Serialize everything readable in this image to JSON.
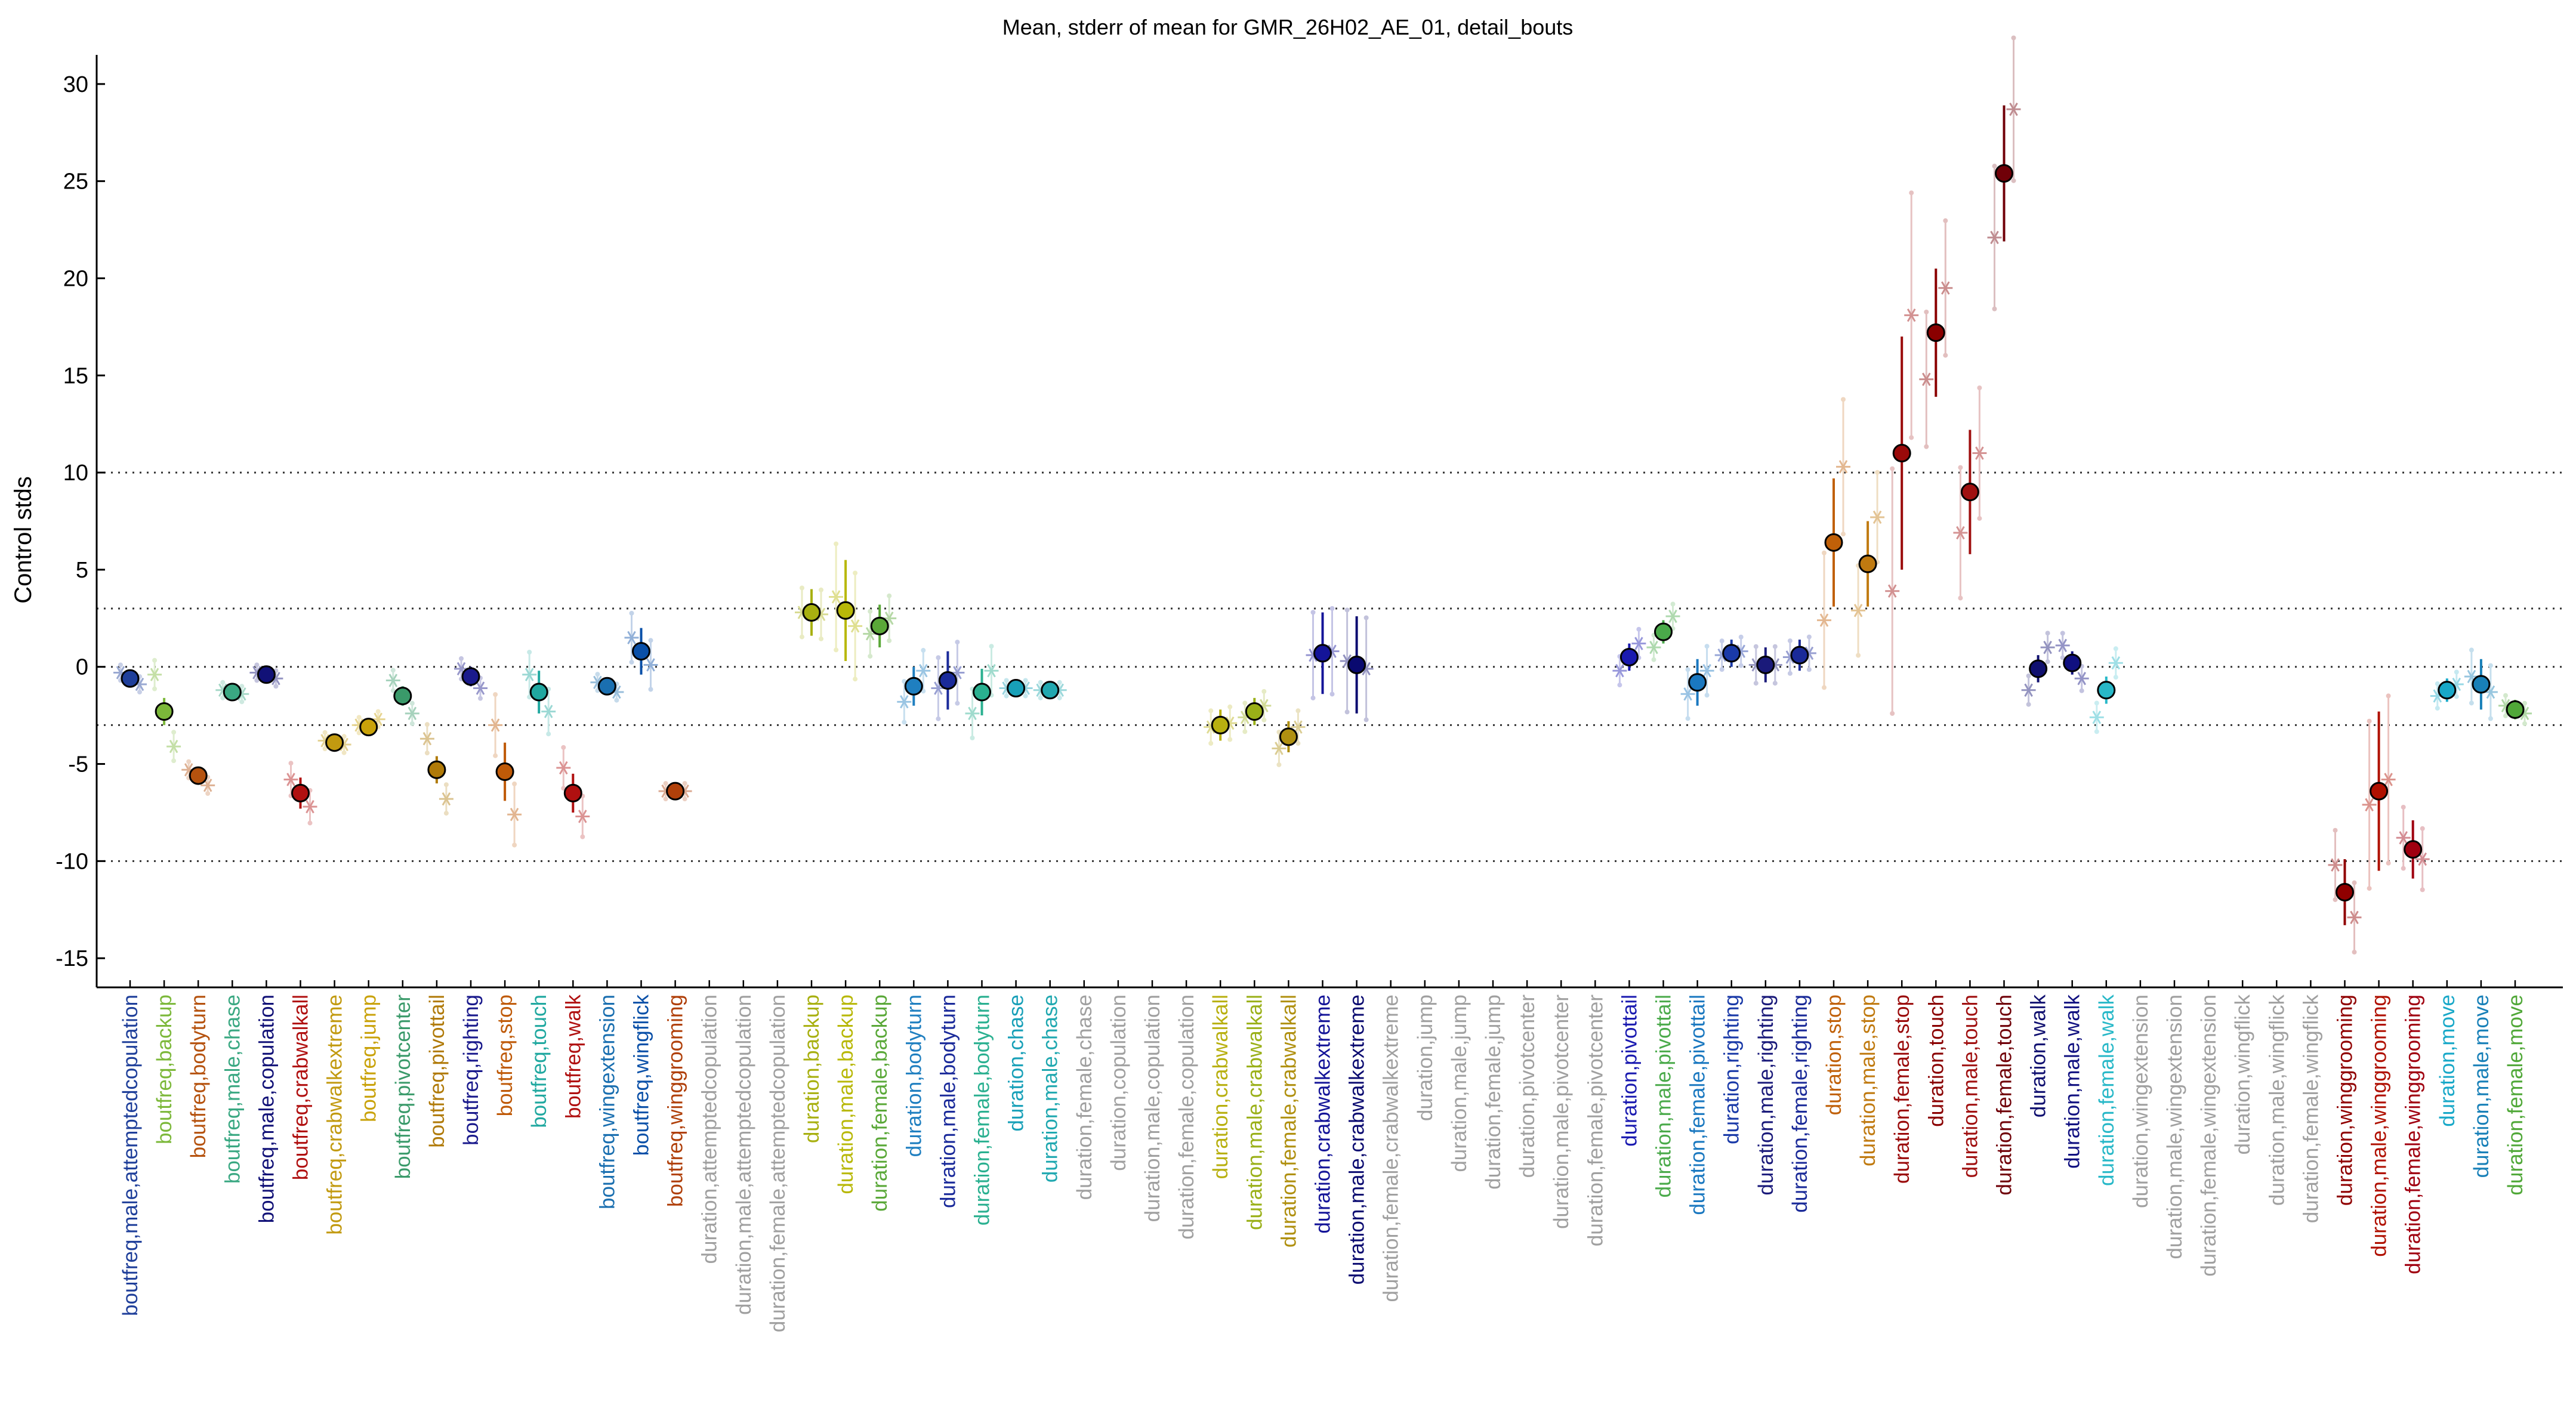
{
  "chart_data": {
    "type": "scatter",
    "title": "Mean, stderr of mean for GMR_26H02_AE_01, detail_bouts",
    "xlabel": "",
    "ylabel": "Control stds",
    "ylim": [
      -16.5,
      31.5
    ],
    "yticks": [
      -15,
      -10,
      -5,
      0,
      5,
      10,
      15,
      20,
      25,
      30
    ],
    "reference_lines": [
      -10,
      -3,
      0,
      3,
      10
    ],
    "grid": false,
    "categories": [
      "boutfreq,male,attemptedcopulation",
      "boutfreq,backup",
      "boutfreq,bodyturn",
      "boutfreq,male,chase",
      "boutfreq,male,copulation",
      "boutfreq,crabwalkall",
      "boutfreq,crabwalkextreme",
      "boutfreq,jump",
      "boutfreq,pivotcenter",
      "boutfreq,pivottail",
      "boutfreq,righting",
      "boutfreq,stop",
      "boutfreq,touch",
      "boutfreq,walk",
      "boutfreq,wingextension",
      "boutfreq,wingflick",
      "boutfreq,winggrooming",
      "duration,attemptedcopulation",
      "duration,male,attemptedcopulation",
      "duration,female,attemptedcopulation",
      "duration,backup",
      "duration,male,backup",
      "duration,female,backup",
      "duration,bodyturn",
      "duration,male,bodyturn",
      "duration,female,bodyturn",
      "duration,chase",
      "duration,male,chase",
      "duration,female,chase",
      "duration,copulation",
      "duration,male,copulation",
      "duration,female,copulation",
      "duration,crabwalkall",
      "duration,male,crabwalkall",
      "duration,female,crabwalkall",
      "duration,crabwalkextreme",
      "duration,male,crabwalkextreme",
      "duration,female,crabwalkextreme",
      "duration,jump",
      "duration,male,jump",
      "duration,female,jump",
      "duration,pivotcenter",
      "duration,male,pivotcenter",
      "duration,female,pivotcenter",
      "duration,pivottail",
      "duration,male,pivottail",
      "duration,female,pivottail",
      "duration,righting",
      "duration,male,righting",
      "duration,female,righting",
      "duration,stop",
      "duration,male,stop",
      "duration,female,stop",
      "duration,touch",
      "duration,male,touch",
      "duration,female,touch",
      "duration,walk",
      "duration,male,walk",
      "duration,female,walk",
      "duration,wingextension",
      "duration,male,wingextension",
      "duration,female,wingextension",
      "duration,wingflick",
      "duration,male,wingflick",
      "duration,female,wingflick",
      "duration,winggrooming",
      "duration,male,winggrooming",
      "duration,female,winggrooming",
      "duration,move",
      "duration,male,move",
      "duration,female,move"
    ],
    "label_colors": [
      "#1f3f9a",
      "#7cb83a",
      "#b5520e",
      "#3aa882",
      "#111177",
      "#b01010",
      "#c29a10",
      "#c9a20a",
      "#3a9a6a",
      "#b07a08",
      "#1a1a8c",
      "#bf5a08",
      "#20a8a0",
      "#b01010",
      "#1a6fb0",
      "#0a50a8",
      "#b0400a",
      "#a0a0a0",
      "#a0a0a0",
      "#a0a0a0",
      "#a8b010",
      "#b8b808",
      "#5aa838",
      "#1f7fc0",
      "#1a2a9a",
      "#2ab090",
      "#18a0b8",
      "#20a8b0",
      "#a0a0a0",
      "#a0a0a0",
      "#a0a0a0",
      "#a0a0a0",
      "#b8b010",
      "#9ab018",
      "#b09010",
      "#141498",
      "#0a0a70",
      "#a0a0a0",
      "#a0a0a0",
      "#a0a0a0",
      "#a0a0a0",
      "#a0a0a0",
      "#a0a0a0",
      "#a0a0a0",
      "#1a1ab0",
      "#4aaa4a",
      "#1a78c0",
      "#1a3aa8",
      "#1a1a7a",
      "#1a2a98",
      "#c06008",
      "#c07a10",
      "#9a0a0a",
      "#8a0000",
      "#a01010",
      "#700008",
      "#101070",
      "#101080",
      "#28b8c8",
      "#a0a0a0",
      "#a0a0a0",
      "#a0a0a0",
      "#a0a0a0",
      "#a0a0a0",
      "#a0a0a0",
      "#900000",
      "#b01000",
      "#a00010",
      "#18a8c8",
      "#1880b8",
      "#50a838"
    ],
    "series": [
      {
        "stat": "mean",
        "values": [
          -0.6,
          -2.3,
          -5.6,
          -1.3,
          -0.4,
          -6.5,
          -3.9,
          -3.1,
          -1.5,
          -5.3,
          -0.5,
          -5.4,
          -1.3,
          -6.5,
          -1.0,
          0.8,
          -6.4,
          null,
          null,
          null,
          2.8,
          2.9,
          2.1,
          -1.0,
          -0.7,
          -1.3,
          -1.1,
          -1.2,
          null,
          null,
          null,
          null,
          -3.0,
          -2.3,
          -3.6,
          0.7,
          0.1,
          null,
          null,
          null,
          null,
          null,
          null,
          null,
          0.5,
          1.8,
          -0.8,
          0.7,
          0.1,
          0.6,
          6.4,
          5.3,
          11.0,
          17.2,
          9.0,
          25.4,
          -0.1,
          0.2,
          -1.2,
          null,
          null,
          null,
          null,
          null,
          null,
          -11.6,
          -6.4,
          -9.4,
          -1.2,
          -0.9,
          -2.2
        ],
        "stderr": [
          0.3,
          0.7,
          0.4,
          0.3,
          0.3,
          0.8,
          0.4,
          0.3,
          0.5,
          0.7,
          0.5,
          1.5,
          1.1,
          1.0,
          0.4,
          1.2,
          0.3,
          null,
          null,
          null,
          1.2,
          2.6,
          1.1,
          1.0,
          1.5,
          1.2,
          0.3,
          0.3,
          null,
          null,
          null,
          null,
          0.8,
          0.7,
          0.8,
          2.1,
          2.5,
          null,
          null,
          null,
          null,
          null,
          null,
          null,
          0.7,
          0.6,
          1.2,
          0.7,
          0.9,
          0.8,
          3.3,
          2.2,
          6.0,
          3.3,
          3.2,
          3.5,
          0.7,
          0.6,
          0.7,
          null,
          null,
          null,
          null,
          null,
          null,
          1.7,
          4.1,
          1.5,
          0.6,
          1.3,
          0.5
        ]
      },
      {
        "stat": "male",
        "values": [
          -0.3,
          -0.4,
          -5.3,
          -1.2,
          -0.3,
          -5.8,
          -3.8,
          -3.0,
          -0.7,
          -3.7,
          -0.1,
          -3.0,
          -0.4,
          -5.2,
          -0.8,
          1.5,
          -6.4,
          null,
          null,
          null,
          2.8,
          3.6,
          1.7,
          -1.8,
          -1.1,
          -2.4,
          -1.1,
          -1.2,
          null,
          null,
          null,
          null,
          -3.1,
          -2.6,
          -4.2,
          0.6,
          0.3,
          null,
          null,
          null,
          null,
          null,
          null,
          null,
          -0.2,
          1.0,
          -1.4,
          0.6,
          0.1,
          0.5,
          2.4,
          2.9,
          3.9,
          14.8,
          6.9,
          22.1,
          -1.2,
          1.1,
          -2.6,
          null,
          null,
          null,
          null,
          null,
          null,
          -10.2,
          -7.1,
          -8.8,
          -1.5,
          -0.5,
          -2.0
        ]
      },
      {
        "stat": "female",
        "values": [
          -0.9,
          -4.1,
          -6.1,
          -1.4,
          -0.6,
          -7.2,
          -4.0,
          -2.7,
          -2.4,
          -6.8,
          -1.1,
          -7.6,
          -2.3,
          -7.7,
          -1.3,
          0.1,
          -6.4,
          null,
          null,
          null,
          2.7,
          2.1,
          2.5,
          -0.2,
          -0.3,
          -0.2,
          -1.1,
          -1.2,
          null,
          null,
          null,
          null,
          -2.9,
          -2.0,
          -3.1,
          0.8,
          -0.1,
          null,
          null,
          null,
          null,
          null,
          null,
          null,
          1.2,
          2.6,
          -0.2,
          0.8,
          0.1,
          0.7,
          10.3,
          7.7,
          18.1,
          19.5,
          11.0,
          28.7,
          1.0,
          -0.6,
          0.2,
          null,
          null,
          null,
          null,
          null,
          null,
          -12.9,
          -5.8,
          -9.9,
          -0.9,
          -1.3,
          -2.4
        ]
      }
    ]
  }
}
